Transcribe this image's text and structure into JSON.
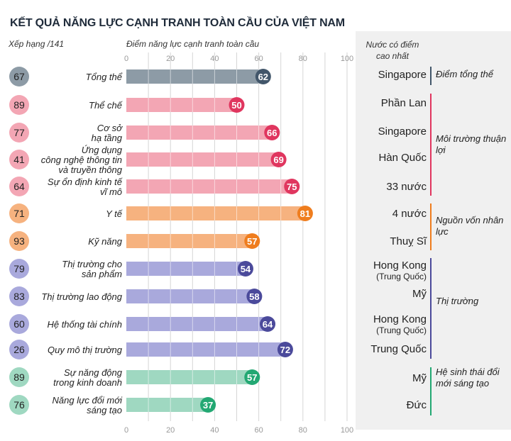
{
  "title": "KẾT QUẢ NĂNG LỰC CẠNH TRANH TOÀN CẦU CỦA VIỆT NAM",
  "rank_header": "Xếp hạng /141",
  "side_header": "Nước có điểm cao nhất",
  "colors": {
    "overall": "#8d9ba6",
    "overall_dark": "#42566a",
    "environment": "#f3a6b4",
    "environment_dark": "#e0365f",
    "human": "#f6b27f",
    "human_dark": "#ef7d1e",
    "market": "#a9a9dc",
    "market_dark": "#4b4a9b",
    "innovation": "#9fd8c1",
    "innovation_dark": "#23a873"
  },
  "chart_data": {
    "type": "bar",
    "orientation": "horizontal",
    "title": "KẾT QUẢ NĂNG LỰC CẠNH TRANH TOÀN CẦU CỦA VIỆT NAM",
    "xlabel": "Điểm năng lực cạnh tranh toàn cầu",
    "xlim": [
      0,
      100
    ],
    "xticks": [
      0,
      20,
      40,
      60,
      80,
      100
    ],
    "grid": true,
    "categories": [
      "Tổng thể",
      "Thể chế",
      "Cơ sở hạ tầng",
      "Ứng dụng công nghệ thông tin và truyền thông",
      "Sự ổn định kinh tế vĩ mô",
      "Y tế",
      "Kỹ năng",
      "Thị trường cho sản phẩm",
      "Thị trường lao động",
      "Hệ thống tài chính",
      "Quy mô thị trường",
      "Sự năng động trong kinh doanh",
      "Năng lực đổi mới sáng tạo"
    ],
    "category_lines": [
      [
        "Tổng thể"
      ],
      [
        "Thể chế"
      ],
      [
        "Cơ sở",
        "hạ tầng"
      ],
      [
        "Ứng dụng",
        "công nghệ thông tin",
        "và truyền thông"
      ],
      [
        "Sự ổn định kinh tế",
        "vĩ mô"
      ],
      [
        "Y tế"
      ],
      [
        "Kỹ năng"
      ],
      [
        "Thị trường cho",
        "sản phẩm"
      ],
      [
        "Thị trường lao động"
      ],
      [
        "Hệ thống tài chính"
      ],
      [
        "Quy mô thị trường"
      ],
      [
        "Sự năng động",
        "trong kinh doanh"
      ],
      [
        "Năng lực đổi mới",
        "sáng tạo"
      ]
    ],
    "values": [
      62,
      50,
      66,
      69,
      75,
      81,
      57,
      54,
      58,
      64,
      72,
      57,
      37
    ],
    "ranks": [
      67,
      89,
      77,
      41,
      64,
      71,
      93,
      79,
      83,
      60,
      26,
      89,
      76
    ],
    "groups": [
      "overall",
      "environment",
      "environment",
      "environment",
      "environment",
      "human",
      "human",
      "market",
      "market",
      "market",
      "market",
      "innovation",
      "innovation"
    ]
  },
  "top_countries": [
    {
      "name": "Singapore",
      "sub": ""
    },
    {
      "name": "Phần Lan",
      "sub": ""
    },
    {
      "name": "Singapore",
      "sub": ""
    },
    {
      "name": "Hàn Quốc",
      "sub": ""
    },
    {
      "name": "33 nước",
      "sub": ""
    },
    {
      "name": "4 nước",
      "sub": ""
    },
    {
      "name": "Thuỵ Sĩ",
      "sub": ""
    },
    {
      "name": "Hong Kong",
      "sub": "(Trung Quốc)"
    },
    {
      "name": "Mỹ",
      "sub": ""
    },
    {
      "name": "Hong Kong",
      "sub": "(Trung Quốc)"
    },
    {
      "name": "Trung Quốc",
      "sub": ""
    },
    {
      "name": "Mỹ",
      "sub": ""
    },
    {
      "name": "Đức",
      "sub": ""
    }
  ],
  "group_labels": {
    "overall": "Điểm tổng thể",
    "environment": "Môi trường thuận lợi",
    "human": "Nguồn vốn nhân lực",
    "market": "Thị trường",
    "innovation": "Hệ sinh thái đổi mới sáng tạo"
  }
}
